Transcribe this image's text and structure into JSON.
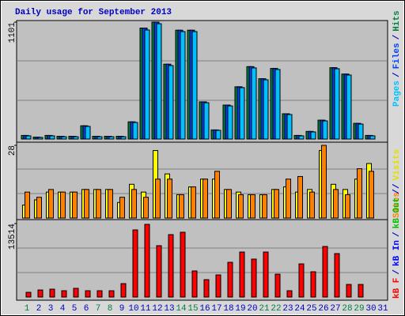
{
  "title": "Daily usage for September 2013",
  "separator": "/",
  "x_axis": {
    "categories": [
      "1",
      "2",
      "3",
      "4",
      "5",
      "6",
      "7",
      "8",
      "9",
      "10",
      "11",
      "12",
      "13",
      "14",
      "15",
      "16",
      "17",
      "18",
      "19",
      "20",
      "21",
      "22",
      "23",
      "24",
      "25",
      "26",
      "27",
      "28",
      "29",
      "30",
      "31"
    ],
    "colors": [
      "#008040",
      "#0000c0",
      "#0000c0",
      "#0000c0",
      "#0000c0",
      "#0000c0",
      "#008040",
      "#008040",
      "#0000c0",
      "#0000c0",
      "#0000c0",
      "#0000c0",
      "#0000c0",
      "#008040",
      "#008040",
      "#0000c0",
      "#0000c0",
      "#0000c0",
      "#0000c0",
      "#0000c0",
      "#008040",
      "#008040",
      "#0000c0",
      "#0000c0",
      "#0000c0",
      "#0000c0",
      "#0000c0",
      "#008040",
      "#008040",
      "#0000c0",
      "#0000c0"
    ]
  },
  "chart_data": [
    {
      "type": "bar",
      "ylim": [
        0,
        1101
      ],
      "yticks": [
        1101
      ],
      "series": [
        {
          "name": "Pages",
          "color": "#00c0ff",
          "values": [
            30,
            15,
            30,
            22,
            22,
            119,
            22,
            22,
            22,
            156,
            1027,
            1086,
            692,
            1012,
            1012,
            342,
            82,
            312,
            484,
            670,
            558,
            655,
            231,
            30,
            67,
            171,
            662,
            603,
            141,
            30,
            null
          ]
        },
        {
          "name": "Files",
          "color": "#0040ff",
          "values": [
            34,
            18,
            34,
            26,
            26,
            125,
            26,
            26,
            26,
            162,
            1045,
            1101,
            705,
            1025,
            1025,
            350,
            86,
            320,
            492,
            682,
            568,
            665,
            238,
            34,
            72,
            178,
            672,
            612,
            148,
            34,
            null
          ]
        },
        {
          "name": "Hits",
          "color": "#008040",
          "values": [
            34,
            18,
            34,
            26,
            26,
            125,
            26,
            26,
            26,
            162,
            1045,
            1101,
            705,
            1025,
            1025,
            350,
            86,
            320,
            492,
            682,
            568,
            665,
            238,
            34,
            72,
            178,
            672,
            612,
            148,
            34,
            null
          ]
        }
      ]
    },
    {
      "type": "bar",
      "ylim": [
        0,
        28
      ],
      "yticks": [
        28
      ],
      "series": [
        {
          "name": "Sites",
          "color": "#ff8000",
          "values": [
            10,
            8,
            11,
            10,
            10,
            11,
            11,
            11,
            8,
            11,
            8,
            15,
            15,
            9,
            12,
            15,
            18,
            11,
            9,
            9,
            9,
            11,
            15,
            16,
            10,
            28,
            11,
            9,
            19,
            18,
            null
          ]
        },
        {
          "name": "Visits",
          "color": "#ffff00",
          "values": [
            5,
            7,
            10,
            10,
            10,
            11,
            11,
            11,
            6,
            13,
            10,
            26,
            17,
            9,
            12,
            15,
            15,
            11,
            10,
            9,
            9,
            11,
            12,
            10,
            11,
            26,
            13,
            11,
            15,
            21,
            null
          ]
        }
      ]
    },
    {
      "type": "bar",
      "ylim": [
        0,
        13514
      ],
      "yticks": [
        13514
      ],
      "series": [
        {
          "name": "kB F",
          "color": "#ff0000",
          "values": [
            870,
            1300,
            1450,
            1160,
            1600,
            1160,
            1160,
            1160,
            2470,
            12350,
            13370,
            9450,
            11480,
            11920,
            4800,
            3200,
            4070,
            6390,
            8280,
            6980,
            8280,
            4210,
            1160,
            6100,
            4650,
            9300,
            7990,
            2320,
            2320,
            null,
            null
          ]
        },
        {
          "name": "kB In",
          "color": "#0000ff",
          "values": [
            null,
            null,
            null,
            null,
            null,
            null,
            null,
            null,
            null,
            null,
            null,
            null,
            null,
            null,
            null,
            null,
            null,
            null,
            null,
            null,
            null,
            null,
            null,
            null,
            null,
            null,
            null,
            null,
            null,
            null,
            null
          ]
        },
        {
          "name": "kB Out",
          "color": "#00c000",
          "values": [
            null,
            null,
            null,
            null,
            null,
            null,
            null,
            null,
            null,
            null,
            null,
            null,
            null,
            null,
            null,
            null,
            null,
            null,
            null,
            null,
            null,
            null,
            null,
            null,
            null,
            null,
            null,
            null,
            null,
            null,
            null
          ]
        }
      ]
    }
  ]
}
